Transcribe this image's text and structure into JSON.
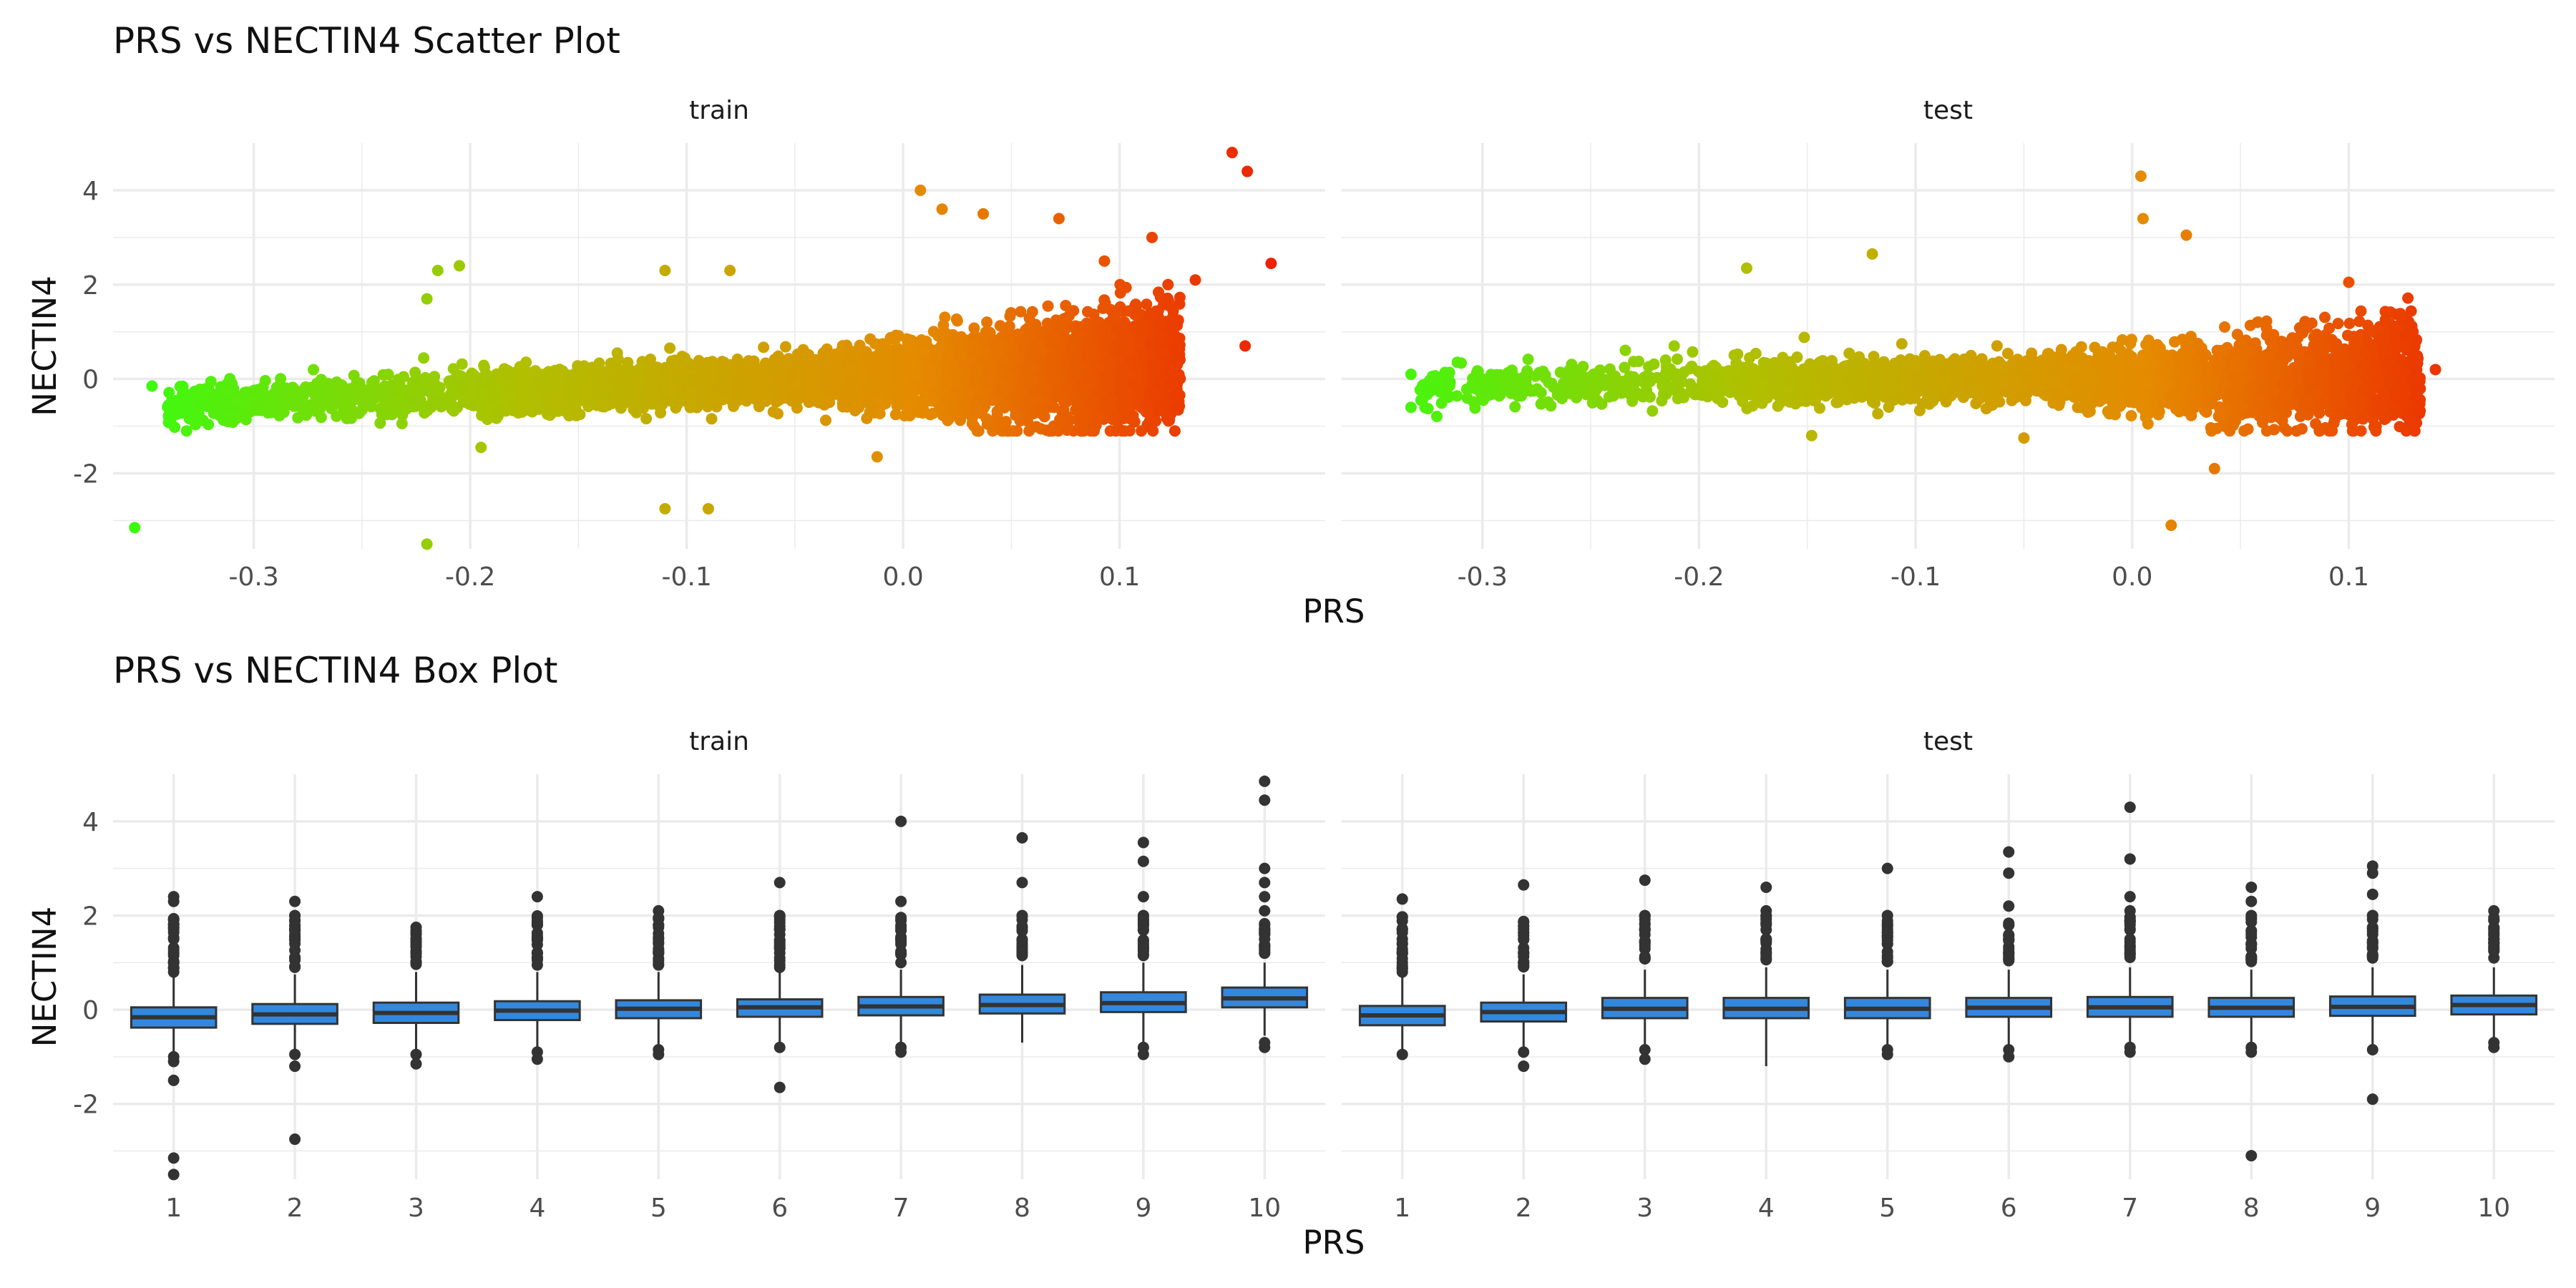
{
  "chart_data": [
    {
      "type": "scatter",
      "title": "PRS vs NECTIN4 Scatter Plot",
      "xlabel": "PRS",
      "ylabel": "NECTIN4",
      "facets": [
        "train",
        "test"
      ],
      "xlim": [
        -0.365,
        0.195
      ],
      "ylim": [
        -3.6,
        5.0
      ],
      "x_ticks": [
        -0.3,
        -0.2,
        -0.1,
        0.0,
        0.1
      ],
      "x_tick_labels": [
        "-0.3",
        "-0.2",
        "-0.1",
        "0.0",
        "0.1"
      ],
      "y_ticks": [
        -2,
        0,
        2,
        4
      ],
      "y_tick_labels": [
        "-2",
        "0",
        "2",
        "4"
      ],
      "color_gradient": [
        "#33ff11",
        "#b0c000",
        "#e58a00",
        "#ee1100"
      ],
      "grid": true,
      "series": [
        {
          "facet": "train",
          "points": [
            {
              "x": -0.355,
              "y": -3.15
            },
            {
              "x": -0.347,
              "y": -0.15
            },
            {
              "x": -0.22,
              "y": -3.5
            },
            {
              "x": -0.22,
              "y": 1.7
            },
            {
              "x": -0.215,
              "y": 2.3
            },
            {
              "x": -0.205,
              "y": 2.4
            },
            {
              "x": -0.195,
              "y": -1.45
            },
            {
              "x": -0.11,
              "y": -2.75
            },
            {
              "x": -0.09,
              "y": -2.75
            },
            {
              "x": -0.11,
              "y": 2.3
            },
            {
              "x": -0.08,
              "y": 2.3
            },
            {
              "x": -0.012,
              "y": -1.65
            },
            {
              "x": 0.008,
              "y": 4.0
            },
            {
              "x": 0.018,
              "y": 3.6
            },
            {
              "x": 0.037,
              "y": 3.5
            },
            {
              "x": 0.072,
              "y": 3.4
            },
            {
              "x": 0.093,
              "y": 2.5
            },
            {
              "x": 0.115,
              "y": 3.0
            },
            {
              "x": 0.135,
              "y": 2.1
            },
            {
              "x": 0.152,
              "y": 4.8
            },
            {
              "x": 0.159,
              "y": 4.4
            },
            {
              "x": 0.17,
              "y": 2.45
            },
            {
              "x": 0.158,
              "y": 0.7
            }
          ]
        },
        {
          "facet": "test",
          "points": [
            {
              "x": -0.333,
              "y": 0.1
            },
            {
              "x": -0.333,
              "y": -0.6
            },
            {
              "x": -0.178,
              "y": 2.35
            },
            {
              "x": -0.148,
              "y": -1.2
            },
            {
              "x": -0.12,
              "y": 2.65
            },
            {
              "x": -0.05,
              "y": -1.25
            },
            {
              "x": 0.004,
              "y": 4.3
            },
            {
              "x": 0.005,
              "y": 3.4
            },
            {
              "x": 0.025,
              "y": 3.05
            },
            {
              "x": 0.038,
              "y": -1.9
            },
            {
              "x": 0.018,
              "y": -3.1
            },
            {
              "x": 0.1,
              "y": 2.05
            },
            {
              "x": 0.14,
              "y": 0.2
            },
            {
              "x": 0.13,
              "y": 0.35
            }
          ]
        }
      ]
    },
    {
      "type": "box",
      "title": "PRS vs NECTIN4 Box Plot",
      "xlabel": "PRS",
      "ylabel": "NECTIN4",
      "facets": [
        "train",
        "test"
      ],
      "categories": [
        "1",
        "2",
        "3",
        "4",
        "5",
        "6",
        "7",
        "8",
        "9",
        "10"
      ],
      "ylim": [
        -3.6,
        5.0
      ],
      "y_ticks": [
        -2,
        0,
        2,
        4
      ],
      "y_tick_labels": [
        "-2",
        "0",
        "2",
        "4"
      ],
      "box_fill": "#3388dd",
      "grid": true,
      "series": [
        {
          "facet": "train",
          "boxes": [
            {
              "category": "1",
              "q1": -0.38,
              "median": -0.16,
              "q3": 0.05,
              "whisker_low": -0.95,
              "whisker_high": 0.7,
              "outliers": [
                2.4,
                2.3,
                1.9,
                1.5,
                1.2,
                1.0,
                0.8,
                -1.0,
                -1.1,
                -1.5,
                -3.15,
                -3.5
              ]
            },
            {
              "category": "2",
              "q1": -0.3,
              "median": -0.1,
              "q3": 0.12,
              "whisker_low": -0.85,
              "whisker_high": 0.75,
              "outliers": [
                2.3,
                2.0,
                1.7,
                1.4,
                1.1,
                0.9,
                -0.95,
                -1.2,
                -2.75
              ]
            },
            {
              "category": "3",
              "q1": -0.28,
              "median": -0.07,
              "q3": 0.15,
              "whisker_low": -0.85,
              "whisker_high": 0.8,
              "outliers": [
                1.75,
                1.5,
                1.2,
                1.0,
                -0.95,
                -1.15
              ]
            },
            {
              "category": "4",
              "q1": -0.22,
              "median": -0.02,
              "q3": 0.18,
              "whisker_low": -0.85,
              "whisker_high": 0.8,
              "outliers": [
                2.4,
                1.8,
                1.5,
                1.2,
                0.95,
                -0.9,
                -1.05
              ]
            },
            {
              "category": "5",
              "q1": -0.18,
              "median": 0.02,
              "q3": 0.2,
              "whisker_low": -0.75,
              "whisker_high": 0.8,
              "outliers": [
                2.1,
                1.8,
                1.5,
                1.2,
                0.95,
                -0.85,
                -0.95
              ]
            },
            {
              "category": "6",
              "q1": -0.15,
              "median": 0.05,
              "q3": 0.22,
              "whisker_low": -0.75,
              "whisker_high": 0.8,
              "outliers": [
                2.7,
                2.0,
                1.7,
                1.4,
                1.1,
                0.9,
                -0.8,
                -1.65
              ]
            },
            {
              "category": "7",
              "q1": -0.12,
              "median": 0.07,
              "q3": 0.27,
              "whisker_low": -0.75,
              "whisker_high": 0.85,
              "outliers": [
                4.0,
                2.3,
                1.5,
                1.2,
                1.0,
                -0.8,
                -0.9
              ]
            },
            {
              "category": "8",
              "q1": -0.08,
              "median": 0.1,
              "q3": 0.32,
              "whisker_low": -0.7,
              "whisker_high": 0.95,
              "outliers": [
                3.65,
                2.7,
                2.0,
                1.7,
                1.4,
                1.15
              ]
            },
            {
              "category": "9",
              "q1": -0.05,
              "median": 0.14,
              "q3": 0.37,
              "whisker_low": -0.7,
              "whisker_high": 1.0,
              "outliers": [
                3.55,
                3.15,
                2.4,
                2.0,
                1.7,
                1.4,
                1.15,
                -0.8,
                -0.95
              ]
            },
            {
              "category": "10",
              "q1": 0.05,
              "median": 0.24,
              "q3": 0.47,
              "whisker_low": -0.55,
              "whisker_high": 1.0,
              "outliers": [
                4.85,
                4.45,
                3.0,
                2.7,
                2.4,
                2.1,
                1.8,
                1.5,
                1.2,
                -0.7,
                -0.8
              ]
            }
          ]
        },
        {
          "facet": "test",
          "boxes": [
            {
              "category": "1",
              "q1": -0.33,
              "median": -0.12,
              "q3": 0.08,
              "whisker_low": -0.9,
              "whisker_high": 0.7,
              "outliers": [
                2.35,
                1.5,
                1.2,
                1.0,
                0.8,
                -0.95
              ]
            },
            {
              "category": "2",
              "q1": -0.25,
              "median": -0.05,
              "q3": 0.15,
              "whisker_low": -0.85,
              "whisker_high": 0.75,
              "outliers": [
                2.65,
                1.5,
                1.2,
                1.0,
                -0.9,
                -1.2
              ]
            },
            {
              "category": "3",
              "q1": -0.18,
              "median": 0.02,
              "q3": 0.25,
              "whisker_low": -0.8,
              "whisker_high": 0.85,
              "outliers": [
                2.75,
                2.0,
                1.7,
                1.4,
                1.1,
                -0.85,
                -1.05
              ]
            },
            {
              "category": "4",
              "q1": -0.18,
              "median": 0.02,
              "q3": 0.25,
              "whisker_low": -1.2,
              "whisker_high": 0.9,
              "outliers": [
                2.6,
                2.1,
                1.8,
                1.5,
                1.2
              ]
            },
            {
              "category": "5",
              "q1": -0.18,
              "median": 0.02,
              "q3": 0.25,
              "whisker_low": -0.8,
              "whisker_high": 0.85,
              "outliers": [
                3.0,
                2.0,
                1.7,
                1.4,
                1.1,
                -0.85,
                -0.95
              ]
            },
            {
              "category": "6",
              "q1": -0.15,
              "median": 0.04,
              "q3": 0.25,
              "whisker_low": -0.8,
              "whisker_high": 0.85,
              "outliers": [
                3.35,
                2.9,
                2.2,
                1.8,
                1.5,
                1.2,
                -0.85,
                -1.0
              ]
            },
            {
              "category": "7",
              "q1": -0.15,
              "median": 0.05,
              "q3": 0.27,
              "whisker_low": -0.75,
              "whisker_high": 0.9,
              "outliers": [
                4.3,
                3.2,
                2.4,
                2.1,
                1.8,
                1.5,
                1.2,
                -0.8,
                -0.9
              ]
            },
            {
              "category": "8",
              "q1": -0.15,
              "median": 0.04,
              "q3": 0.25,
              "whisker_low": -0.75,
              "whisker_high": 0.85,
              "outliers": [
                2.6,
                2.3,
                2.0,
                1.6,
                1.3,
                -0.8,
                -0.9,
                -3.1
              ]
            },
            {
              "category": "9",
              "q1": -0.13,
              "median": 0.06,
              "q3": 0.28,
              "whisker_low": -0.75,
              "whisker_high": 0.9,
              "outliers": [
                3.05,
                2.9,
                2.45,
                2.0,
                1.6,
                1.3,
                -0.85,
                -1.9
              ]
            },
            {
              "category": "10",
              "q1": -0.1,
              "median": 0.1,
              "q3": 0.3,
              "whisker_low": -0.7,
              "whisker_high": 0.9,
              "outliers": [
                2.1,
                1.9,
                1.6,
                1.3,
                1.1,
                -0.7,
                -0.8
              ]
            }
          ]
        }
      ]
    }
  ]
}
